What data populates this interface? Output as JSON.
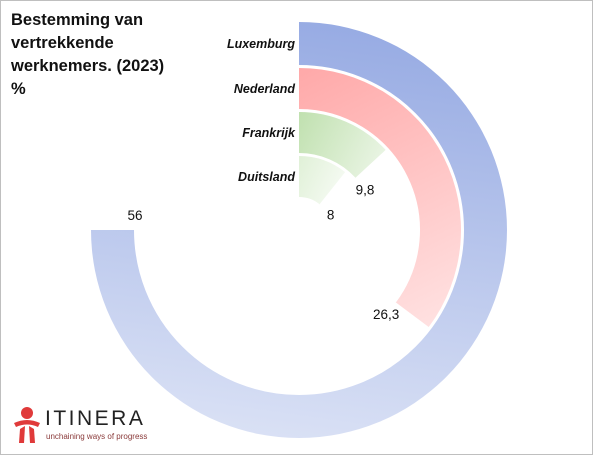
{
  "title": {
    "lines": [
      "Bestemming van",
      "vertrekkende",
      "werknemers. (2023)",
      "%"
    ]
  },
  "chart_data": {
    "type": "radial-bar",
    "unit": "%",
    "max": 56,
    "categories": [
      "Luxemburg",
      "Nederland",
      "Frankrijk",
      "Duitsland"
    ],
    "values": [
      56,
      26.3,
      9.8,
      8
    ],
    "value_labels": [
      "56",
      "26,3",
      "9,8",
      "8"
    ],
    "colors": [
      "#97abe3",
      "#ffa8a8",
      "#bfe0ae",
      "#dff0d6"
    ]
  },
  "logo": {
    "name": "ITINERA",
    "tagline": "unchaining ways of progress",
    "color": "#e03a3a"
  }
}
